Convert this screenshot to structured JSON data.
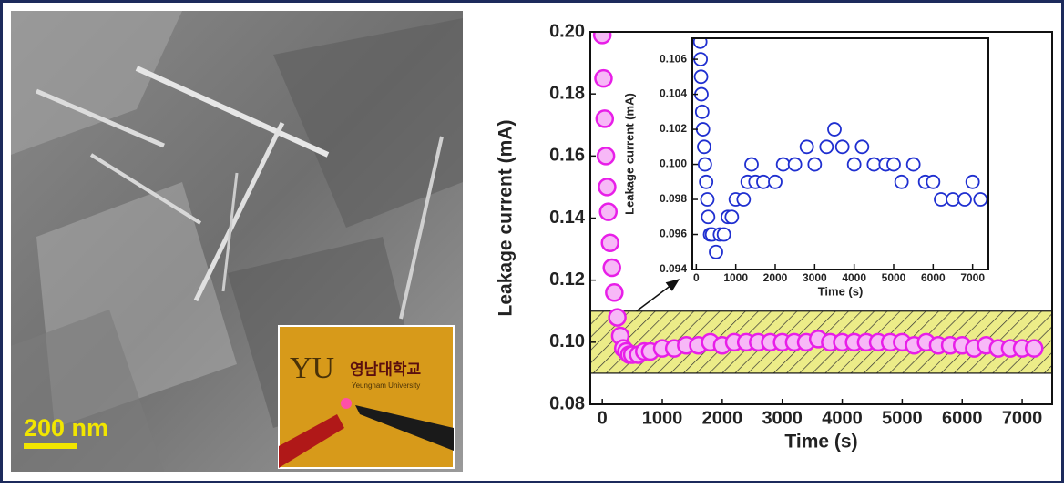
{
  "image": {
    "scale_bar": "200 nm",
    "logo_mark": "YU",
    "logo_korean": "영남대학교",
    "logo_english": "Yeungnam University"
  },
  "chart_data": [
    {
      "type": "scatter",
      "x_label": "Time (s)",
      "y_label": "Leakage current (mA)",
      "xlim": [
        -200,
        7500
      ],
      "ylim": [
        0.08,
        0.2
      ],
      "xticks": [
        0,
        1000,
        2000,
        3000,
        4000,
        5000,
        6000,
        7000
      ],
      "yticks": [
        0.08,
        {
          "value": 0.1,
          "label": "0.10"
        },
        0.12,
        0.14,
        0.16,
        0.18,
        {
          "value": 0.2,
          "label": "0.20"
        }
      ],
      "highlight_band": [
        0.09,
        0.11
      ],
      "color": "#e81ee8",
      "x": [
        0,
        20,
        40,
        60,
        80,
        100,
        130,
        160,
        200,
        250,
        300,
        350,
        400,
        450,
        500,
        600,
        700,
        800,
        1000,
        1200,
        1400,
        1600,
        1800,
        2000,
        2200,
        2400,
        2600,
        2800,
        3000,
        3200,
        3400,
        3600,
        3800,
        4000,
        4200,
        4400,
        4600,
        4800,
        5000,
        5200,
        5400,
        5600,
        5800,
        6000,
        6200,
        6400,
        6600,
        6800,
        7000,
        7200
      ],
      "values": [
        0.199,
        0.185,
        0.172,
        0.16,
        0.15,
        0.142,
        0.132,
        0.124,
        0.116,
        0.108,
        0.102,
        0.098,
        0.097,
        0.096,
        0.096,
        0.096,
        0.097,
        0.097,
        0.098,
        0.098,
        0.099,
        0.099,
        0.1,
        0.099,
        0.1,
        0.1,
        0.1,
        0.1,
        0.1,
        0.1,
        0.1,
        0.101,
        0.1,
        0.1,
        0.1,
        0.1,
        0.1,
        0.1,
        0.1,
        0.099,
        0.1,
        0.099,
        0.099,
        0.099,
        0.098,
        0.099,
        0.098,
        0.098,
        0.098,
        0.098
      ]
    },
    {
      "type": "scatter",
      "x_label": "Time (s)",
      "y_label": "Leakage current (mA)",
      "xlim": [
        -100,
        7400
      ],
      "ylim": [
        0.094,
        0.1072
      ],
      "xticks": [
        0,
        1000,
        2000,
        3000,
        4000,
        5000,
        6000,
        7000
      ],
      "yticks": [
        0.094,
        0.096,
        0.098,
        {
          "value": 0.1,
          "label": "0.100"
        },
        0.102,
        0.104,
        0.106
      ],
      "color": "#1f2fd0",
      "x": [
        100,
        110,
        120,
        130,
        150,
        170,
        200,
        220,
        250,
        280,
        300,
        350,
        400,
        500,
        600,
        700,
        800,
        900,
        1000,
        1200,
        1300,
        1400,
        1500,
        1700,
        2000,
        2200,
        2500,
        2800,
        3000,
        3300,
        3500,
        3700,
        4000,
        4200,
        4500,
        4800,
        5000,
        5200,
        5500,
        5800,
        6000,
        6200,
        6500,
        6800,
        7000,
        7200
      ],
      "values": [
        0.107,
        0.106,
        0.105,
        0.104,
        0.103,
        0.102,
        0.101,
        0.1,
        0.099,
        0.098,
        0.097,
        0.096,
        0.096,
        0.095,
        0.096,
        0.096,
        0.097,
        0.097,
        0.098,
        0.098,
        0.099,
        0.1,
        0.099,
        0.099,
        0.099,
        0.1,
        0.1,
        0.101,
        0.1,
        0.101,
        0.102,
        0.101,
        0.1,
        0.101,
        0.1,
        0.1,
        0.1,
        0.099,
        0.1,
        0.099,
        0.099,
        0.098,
        0.098,
        0.098,
        0.099,
        0.098
      ]
    }
  ]
}
